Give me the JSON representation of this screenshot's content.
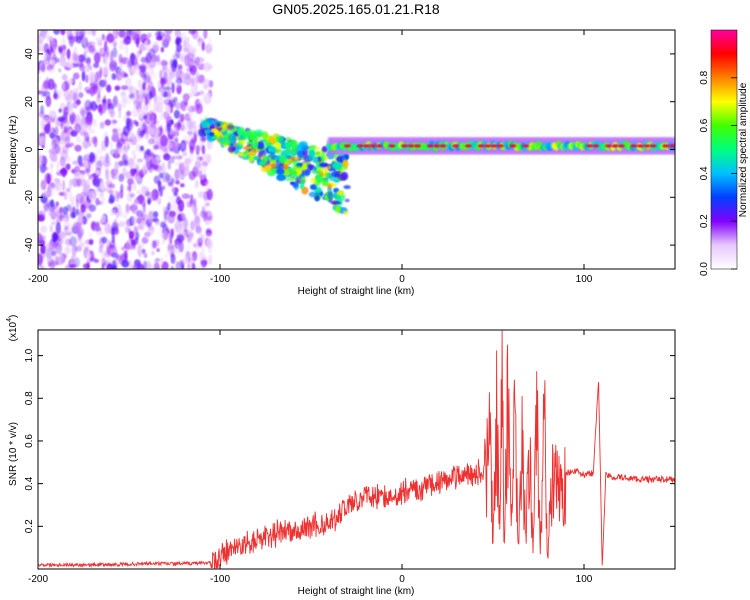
{
  "title": "GN05.2025.165.01.21.R18",
  "colors": {
    "snr_line": "#ee3030",
    "spectrogram_noise": "#7a2cf0",
    "spectrogram_peak": "#e8203a"
  },
  "chart_data": [
    {
      "type": "heatmap",
      "xlabel": "Height of straight line (km)",
      "ylabel": "Frequency (Hz)",
      "xlim": [
        -200,
        150
      ],
      "ylim": [
        -50,
        50
      ],
      "x_ticks": [
        -200,
        -100,
        0,
        100
      ],
      "y_ticks": [
        -40,
        -20,
        0,
        20,
        40
      ],
      "x_tick_labels": [
        "-200",
        "-100",
        "0",
        "100"
      ],
      "y_tick_labels": [
        "-40",
        "-20",
        "0",
        "20",
        "40"
      ],
      "colorbar": {
        "label": "Normalized spectral amplitude",
        "range": [
          0,
          1
        ],
        "ticks": [
          0.0,
          0.2,
          0.4,
          0.6,
          0.8
        ],
        "tick_labels": [
          "0.0",
          "0.2",
          "0.4",
          "0.6",
          "0.8"
        ],
        "colormap": [
          "#ffffff",
          "#e8c8ff",
          "#8000ff",
          "#0040ff",
          "#00c0ff",
          "#00ff80",
          "#40ff00",
          "#ffff00",
          "#ff8000",
          "#ff0000",
          "#ff00a0"
        ]
      },
      "features": [
        {
          "label": "broadband noise",
          "x_range": [
            -200,
            -105
          ],
          "y_range": [
            -50,
            50
          ],
          "amplitude": 0.2
        },
        {
          "label": "drifting signal",
          "x_range": [
            -110,
            -30
          ],
          "y_start": 10,
          "y_end": -15,
          "amplitude": 0.6
        },
        {
          "label": "carrier line",
          "x_range": [
            -40,
            150
          ],
          "y": 1.5,
          "amplitude": 0.95
        }
      ]
    },
    {
      "type": "line",
      "xlabel": "Height of straight line (km)",
      "ylabel": "SNR (10 * v/v)",
      "y_multiplier": "(x10",
      "y_multiplier_exp": "4",
      "y_multiplier_close": ")",
      "xlim": [
        -200,
        150
      ],
      "ylim": [
        0.0,
        1.12
      ],
      "x_ticks": [
        -200,
        -100,
        0,
        100
      ],
      "y_ticks": [
        0.2,
        0.4,
        0.6,
        0.8,
        1.0
      ],
      "x_tick_labels": [
        "-200",
        "-100",
        "0",
        "100"
      ],
      "y_tick_labels": [
        "0.2",
        "0.4",
        "0.6",
        "0.8",
        "1.0"
      ],
      "series": [
        {
          "x": [
            -200,
            -180,
            -160,
            -140,
            -120,
            -105,
            -100,
            -95,
            -90,
            -85,
            -80,
            -75,
            -70,
            -65,
            -60,
            -55,
            -50,
            -45,
            -40,
            -35,
            -30,
            -25,
            -20,
            -15,
            -10,
            -5,
            0,
            5,
            10,
            15,
            20,
            25,
            30,
            35,
            40,
            45,
            48,
            50,
            52,
            54,
            55,
            56,
            58,
            60,
            62,
            64,
            66,
            68,
            70,
            72,
            74,
            76,
            78,
            80,
            82,
            84,
            86,
            90,
            95,
            100,
            105,
            108,
            110,
            112,
            115,
            120,
            130,
            140,
            150
          ],
          "y": [
            0.02,
            0.02,
            0.02,
            0.025,
            0.025,
            0.03,
            0.06,
            0.08,
            0.1,
            0.12,
            0.13,
            0.15,
            0.16,
            0.18,
            0.17,
            0.19,
            0.2,
            0.21,
            0.22,
            0.25,
            0.3,
            0.32,
            0.35,
            0.34,
            0.33,
            0.36,
            0.35,
            0.38,
            0.37,
            0.4,
            0.41,
            0.42,
            0.43,
            0.44,
            0.45,
            0.45,
            0.7,
            0.2,
            0.8,
            0.3,
            1.1,
            0.2,
            0.9,
            0.3,
            0.75,
            0.1,
            0.65,
            0.2,
            0.6,
            0.15,
            0.85,
            0.1,
            0.95,
            0.05,
            0.45,
            0.46,
            0.44,
            0.45,
            0.46,
            0.44,
            0.45,
            0.88,
            0.02,
            0.44,
            0.43,
            0.43,
            0.42,
            0.42,
            0.42
          ]
        }
      ]
    }
  ]
}
